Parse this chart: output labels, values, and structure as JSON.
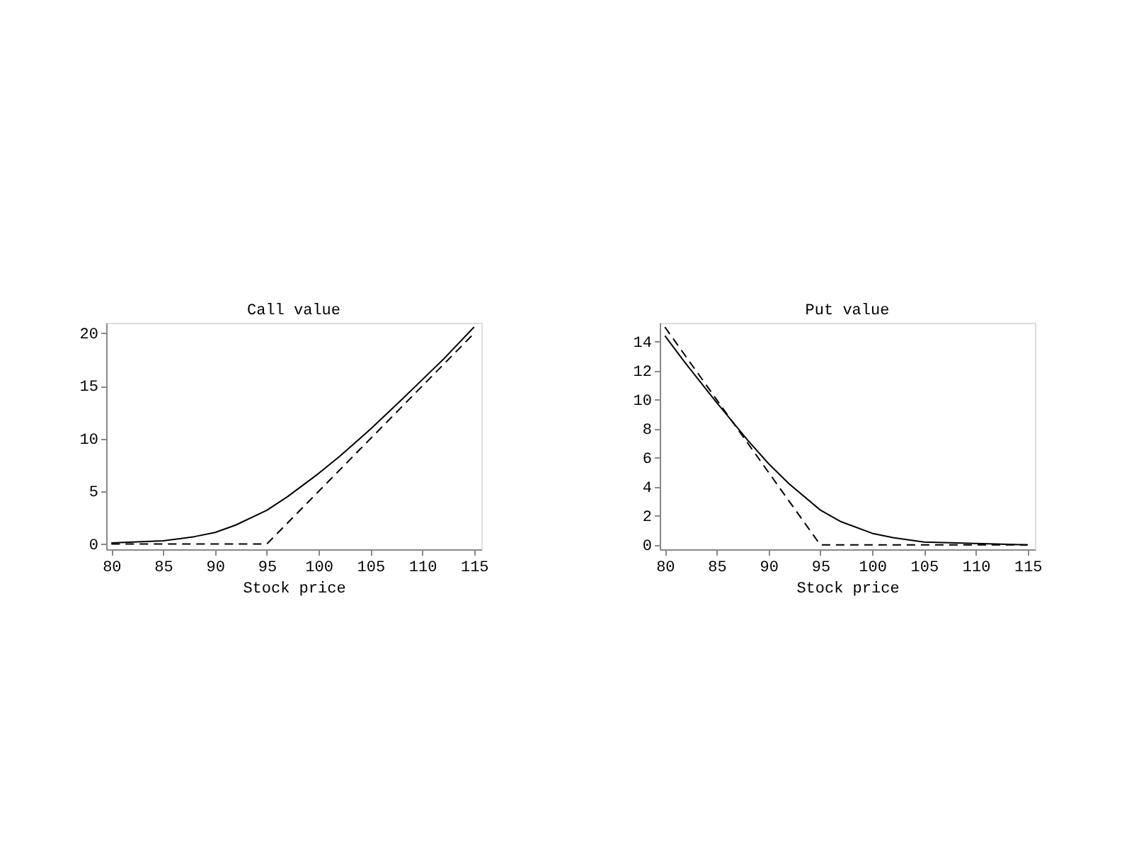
{
  "chart_data": [
    {
      "type": "line",
      "title": "Call value",
      "xlabel": "Stock price",
      "xlim": [
        79.5,
        115.7
      ],
      "ylim": [
        -0.5,
        21
      ],
      "xticks": [
        80,
        85,
        90,
        95,
        100,
        105,
        110,
        115
      ],
      "yticks": [
        0,
        5,
        10,
        15,
        20
      ],
      "grid": false,
      "marker": "none",
      "series": [
        {
          "color": "#000000",
          "line_style": "solid",
          "x": [
            80,
            85,
            88,
            90,
            92,
            95,
            97,
            100,
            102,
            105,
            108,
            110,
            112,
            115
          ],
          "values": [
            0.1,
            0.3,
            0.7,
            1.1,
            1.8,
            3.2,
            4.5,
            6.7,
            8.3,
            10.9,
            13.7,
            15.6,
            17.5,
            20.6
          ]
        },
        {
          "color": "#000000",
          "line_style": "dashed",
          "x": [
            80,
            95,
            115
          ],
          "values": [
            0,
            0,
            20
          ]
        }
      ]
    },
    {
      "type": "line",
      "title": "Put value",
      "xlabel": "Stock price",
      "xlim": [
        79.5,
        115.7
      ],
      "ylim": [
        -0.3,
        15.3
      ],
      "xticks": [
        80,
        85,
        90,
        95,
        100,
        105,
        110,
        115
      ],
      "yticks": [
        0,
        2,
        4,
        6,
        8,
        10,
        12,
        14
      ],
      "grid": false,
      "marker": "none",
      "series": [
        {
          "color": "#000000",
          "line_style": "solid",
          "x": [
            80,
            82,
            85,
            88,
            90,
            92,
            95,
            97,
            100,
            102,
            105,
            110,
            115
          ],
          "values": [
            14.4,
            12.5,
            9.8,
            7.2,
            5.6,
            4.2,
            2.4,
            1.6,
            0.8,
            0.5,
            0.2,
            0.1,
            0
          ]
        },
        {
          "color": "#000000",
          "line_style": "dashed",
          "x": [
            80,
            95,
            115
          ],
          "values": [
            15,
            0,
            0
          ]
        }
      ]
    }
  ]
}
